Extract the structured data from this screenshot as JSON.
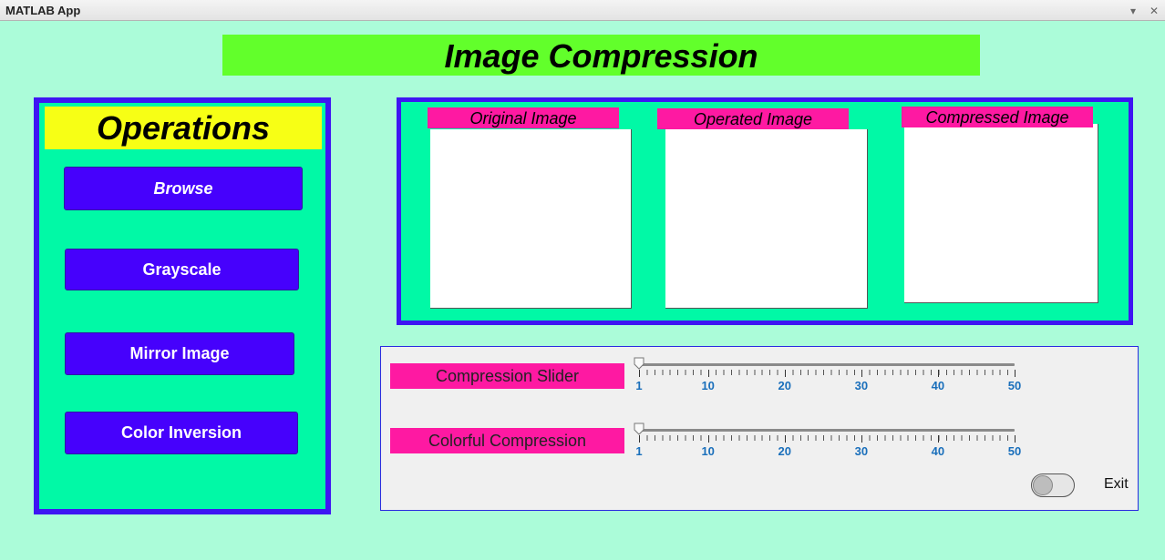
{
  "window": {
    "title": "MATLAB App",
    "menu_icon": "chevron-down-icon",
    "close_icon": "close-icon"
  },
  "app_title": "Image Compression",
  "operations": {
    "title": "Operations",
    "buttons": [
      "Browse",
      "Grayscale",
      "Mirror Image",
      "Color Inversion"
    ]
  },
  "images": {
    "original_label": "Original Image",
    "operated_label": "Operated Image",
    "compressed_label": "Compressed Image"
  },
  "controls": {
    "compression_slider": {
      "label": "Compression Slider",
      "min": 1,
      "max": 50,
      "value": 1,
      "tick_labels": [
        "1",
        "10",
        "20",
        "30",
        "40",
        "50"
      ]
    },
    "colorful_compression": {
      "label": "Colorful Compression",
      "min": 1,
      "max": 50,
      "value": 1,
      "tick_labels": [
        "1",
        "10",
        "20",
        "30",
        "40",
        "50"
      ]
    },
    "exit": {
      "label": "Exit",
      "state": "off"
    }
  },
  "colors": {
    "background": "#abfcd9",
    "panel_fill": "#01f9a6",
    "panel_border": "#3e15f3",
    "title_bar": "#62ff2b",
    "ops_title": "#f7ff15",
    "button": "#4601fc",
    "label_pink": "#fe19a2"
  }
}
